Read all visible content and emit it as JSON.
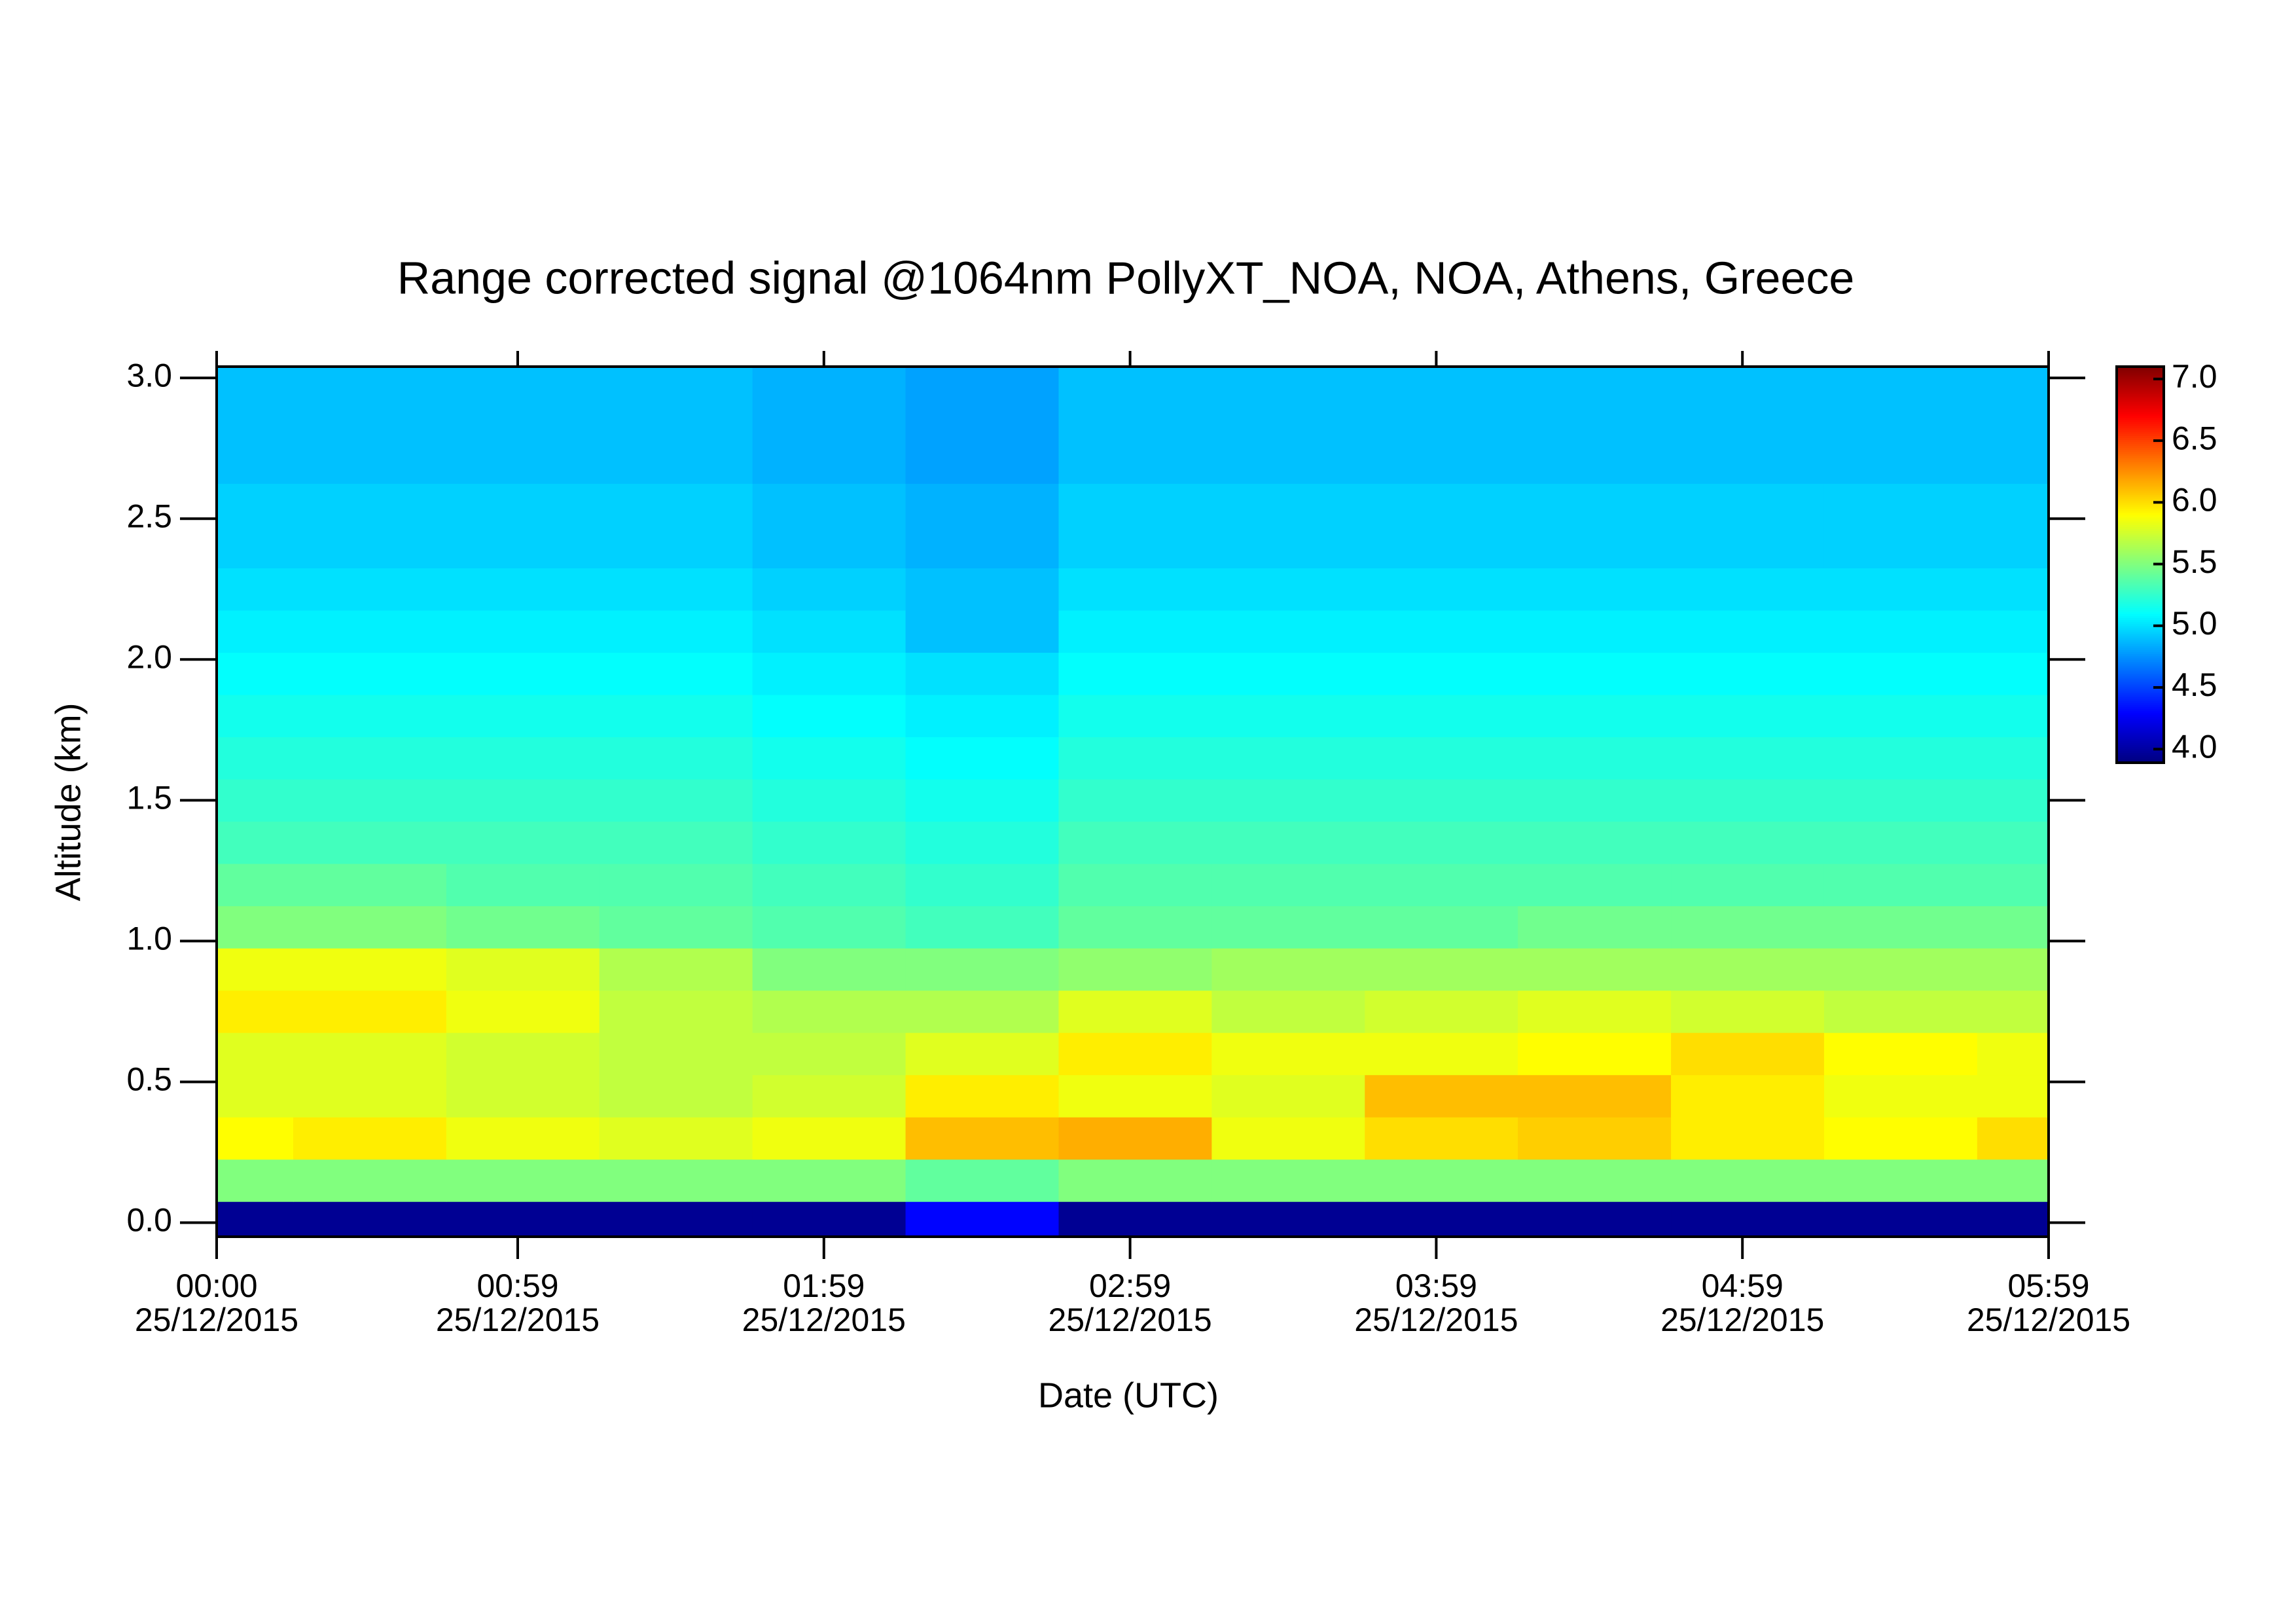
{
  "chart_data": {
    "type": "heatmap",
    "title": "Range corrected signal @1064nm  PollyXT_NOA, NOA, Athens, Greece",
    "x_label": "Date (UTC)",
    "y_label": "Altitude (km)",
    "x": [
      0,
      30,
      60,
      90,
      120,
      150,
      180,
      210,
      240,
      270,
      300,
      330,
      360
    ],
    "y": [
      0,
      0.15,
      0.3,
      0.45,
      0.6,
      0.75,
      0.9,
      1.05,
      1.2,
      1.35,
      1.5,
      1.65,
      1.8,
      1.95,
      2.1,
      2.25,
      2.4,
      2.55,
      2.7,
      2.85,
      3.0
    ],
    "z": [
      [
        3.95,
        3.95,
        3.95,
        3.95,
        3.95,
        4.3,
        3.95,
        3.95,
        3.95,
        3.95,
        3.95,
        3.95,
        3.95
      ],
      [
        5.5,
        5.5,
        5.5,
        5.5,
        5.5,
        5.4,
        5.5,
        5.5,
        5.5,
        5.5,
        5.5,
        5.5,
        5.5
      ],
      [
        5.9,
        5.95,
        5.85,
        5.8,
        5.85,
        6.1,
        6.15,
        5.85,
        6.0,
        6.05,
        5.95,
        5.9,
        6.0
      ],
      [
        5.8,
        5.8,
        5.75,
        5.7,
        5.75,
        5.95,
        5.85,
        5.8,
        6.1,
        6.1,
        5.95,
        5.85,
        5.85
      ],
      [
        5.8,
        5.8,
        5.75,
        5.7,
        5.7,
        5.8,
        5.95,
        5.85,
        5.85,
        5.9,
        6.0,
        5.9,
        5.85
      ],
      [
        5.95,
        5.95,
        5.85,
        5.7,
        5.65,
        5.65,
        5.8,
        5.7,
        5.75,
        5.8,
        5.75,
        5.7,
        5.7
      ],
      [
        5.85,
        5.85,
        5.8,
        5.65,
        5.5,
        5.5,
        5.55,
        5.6,
        5.6,
        5.6,
        5.6,
        5.6,
        5.6
      ],
      [
        5.5,
        5.5,
        5.45,
        5.4,
        5.35,
        5.3,
        5.4,
        5.4,
        5.4,
        5.45,
        5.45,
        5.45,
        5.45
      ],
      [
        5.4,
        5.4,
        5.35,
        5.35,
        5.3,
        5.25,
        5.35,
        5.35,
        5.35,
        5.35,
        5.35,
        5.35,
        5.35
      ],
      [
        5.3,
        5.3,
        5.3,
        5.3,
        5.25,
        5.2,
        5.3,
        5.3,
        5.3,
        5.3,
        5.3,
        5.3,
        5.3
      ],
      [
        5.25,
        5.25,
        5.25,
        5.25,
        5.2,
        5.15,
        5.25,
        5.25,
        5.25,
        5.25,
        5.25,
        5.25,
        5.25
      ],
      [
        5.2,
        5.2,
        5.2,
        5.2,
        5.15,
        5.1,
        5.2,
        5.2,
        5.2,
        5.2,
        5.2,
        5.2,
        5.2
      ],
      [
        5.15,
        5.15,
        5.15,
        5.15,
        5.1,
        5.05,
        5.15,
        5.15,
        5.15,
        5.15,
        5.15,
        5.15,
        5.15
      ],
      [
        5.1,
        5.1,
        5.1,
        5.1,
        5.05,
        5.0,
        5.1,
        5.1,
        5.1,
        5.1,
        5.1,
        5.1,
        5.1
      ],
      [
        5.05,
        5.05,
        5.05,
        5.05,
        5.0,
        4.9,
        5.05,
        5.05,
        5.05,
        5.05,
        5.05,
        5.05,
        5.05
      ],
      [
        5.0,
        5.0,
        5.0,
        5.0,
        4.95,
        4.9,
        5.0,
        5.0,
        5.0,
        5.0,
        5.0,
        5.0,
        5.0
      ],
      [
        4.95,
        4.95,
        4.95,
        4.95,
        4.9,
        4.85,
        4.95,
        4.95,
        4.95,
        4.95,
        4.95,
        4.95,
        4.95
      ],
      [
        4.95,
        4.95,
        4.95,
        4.95,
        4.9,
        4.85,
        4.95,
        4.95,
        4.95,
        4.95,
        4.95,
        4.95,
        4.95
      ],
      [
        4.9,
        4.9,
        4.9,
        4.9,
        4.85,
        4.8,
        4.9,
        4.9,
        4.9,
        4.9,
        4.9,
        4.9,
        4.9
      ],
      [
        4.9,
        4.9,
        4.9,
        4.9,
        4.85,
        4.8,
        4.9,
        4.9,
        4.9,
        4.9,
        4.9,
        4.9,
        4.9
      ],
      [
        4.9,
        4.9,
        4.9,
        4.9,
        4.85,
        4.8,
        4.9,
        4.9,
        4.9,
        4.9,
        4.9,
        4.9,
        4.9
      ]
    ],
    "xlim": [
      0,
      359
    ],
    "ylim": [
      -0.05,
      3.04
    ],
    "zlim": [
      3.89,
      7.1
    ],
    "colormap": "jet",
    "xticks": [
      {
        "value": 0,
        "label": "00:00"
      },
      {
        "value": 59,
        "label": "00:59"
      },
      {
        "value": 119,
        "label": "01:59"
      },
      {
        "value": 179,
        "label": "02:59"
      },
      {
        "value": 239,
        "label": "03:59"
      },
      {
        "value": 299,
        "label": "04:59"
      },
      {
        "value": 359,
        "label": "05:59"
      }
    ],
    "xtick_dates": [
      "25/12/2015",
      "25/12/2015",
      "25/12/2015",
      "25/12/2015",
      "25/12/2015",
      "25/12/2015",
      "25/12/2015"
    ],
    "yticks": [
      {
        "value": 0,
        "label": "0.0"
      },
      0.5,
      {
        "value": 1,
        "label": "1.0"
      },
      1.5,
      {
        "value": 2,
        "label": "2.0"
      },
      2.5,
      {
        "value": 3,
        "label": "3.0"
      }
    ],
    "zticks": [
      {
        "value": 4,
        "label": "4.0"
      },
      4.5,
      {
        "value": 5,
        "label": "5.0"
      },
      5.5,
      {
        "value": 6,
        "label": "6.0"
      },
      6.5,
      {
        "value": 7,
        "label": "7.0"
      }
    ]
  }
}
